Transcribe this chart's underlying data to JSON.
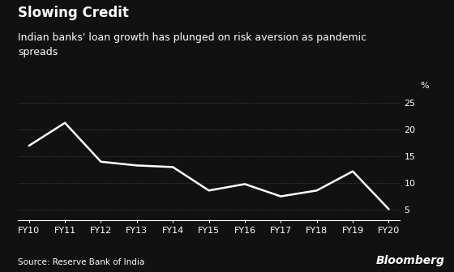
{
  "title": "Slowing Credit",
  "subtitle": "Indian banks' loan growth has plunged on risk aversion as pandemic\nspreads",
  "source": "Source: Reserve Bank of India",
  "watermark": "Bloomberg",
  "x_labels": [
    "FY10",
    "FY11",
    "FY12",
    "FY13",
    "FY14",
    "FY15",
    "FY16",
    "FY17",
    "FY18",
    "FY19",
    "FY20"
  ],
  "y_values": [
    17.0,
    21.3,
    14.0,
    13.3,
    13.0,
    8.6,
    9.8,
    7.5,
    8.6,
    12.2,
    5.1
  ],
  "y_ticks": [
    5,
    10,
    15,
    20,
    25
  ],
  "y_label": "%",
  "ylim": [
    3,
    27
  ],
  "line_color": "#ffffff",
  "background_color": "#111111",
  "text_color": "#ffffff",
  "grid_color": "#555555",
  "title_fontsize": 12,
  "subtitle_fontsize": 9,
  "source_fontsize": 7.5,
  "watermark_fontsize": 10,
  "tick_fontsize": 8
}
